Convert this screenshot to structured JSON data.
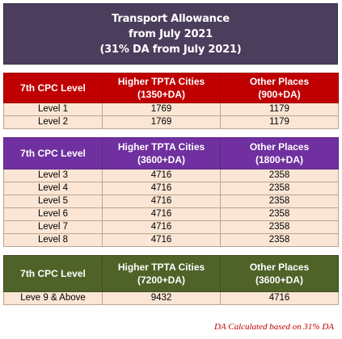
{
  "title": {
    "line1": "Transport Allowance",
    "line2": "from July 2021",
    "line3": "(31% DA from July 2021)"
  },
  "tables": [
    {
      "header": {
        "col1": "7th CPC Level",
        "col2a": "Higher TPTA Cities",
        "col2b": "(1350+DA)",
        "col3a": "Other Places",
        "col3b": "(900+DA)"
      },
      "rows": [
        [
          "Level 1",
          "1769",
          "1179"
        ],
        [
          "Level 2",
          "1769",
          "1179"
        ]
      ]
    },
    {
      "header": {
        "col1": "7th CPC Level",
        "col2a": "Higher TPTA Cities",
        "col2b": "(3600+DA)",
        "col3a": "Other Places",
        "col3b": "(1800+DA)"
      },
      "rows": [
        [
          "Level 3",
          "4716",
          "2358"
        ],
        [
          "Level 4",
          "4716",
          "2358"
        ],
        [
          "Level 5",
          "4716",
          "2358"
        ],
        [
          "Level 6",
          "4716",
          "2358"
        ],
        [
          "Level 7",
          "4716",
          "2358"
        ],
        [
          "Level 8",
          "4716",
          "2358"
        ]
      ]
    },
    {
      "header": {
        "col1": "7th CPC Level",
        "col2a": "Higher TPTA Cities",
        "col2b": "(7200+DA)",
        "col3a": "Other Places",
        "col3b": "(3600+DA)"
      },
      "rows": [
        [
          "Leve 9 & Above",
          "9432",
          "4716"
        ]
      ]
    }
  ],
  "note": "DA Calculated based on 31% DA",
  "colors": {
    "title_bg": "#4b3d5c",
    "table1_header": "#c00000",
    "table2_header": "#7030a0",
    "table3_header": "#4f6228",
    "cell_bg": "#fbe6d5",
    "note_color": "#c00000"
  }
}
